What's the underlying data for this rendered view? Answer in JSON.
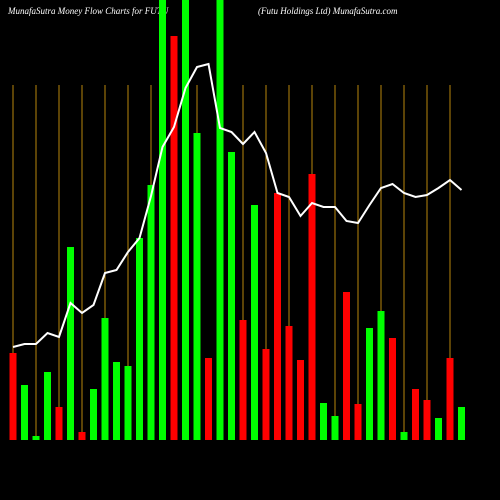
{
  "chart_data": {
    "type": "bar",
    "title": "MunafaSutra  Money Flow  Charts for FUTU",
    "subtitle": "(Futu   Holdings Ltd) MunafaSutra.com",
    "values": [
      87,
      55,
      4,
      68,
      33,
      193,
      8,
      51,
      122,
      78,
      74,
      202,
      255,
      460,
      404,
      460,
      307,
      82,
      460,
      288,
      120,
      235,
      91,
      247,
      114,
      80,
      266,
      37,
      24,
      148,
      36,
      112,
      129,
      102,
      8,
      51,
      40,
      22,
      82,
      33
    ],
    "colors": [
      "red",
      "lime",
      "lime",
      "lime",
      "red",
      "lime",
      "red",
      "lime",
      "lime",
      "lime",
      "lime",
      "lime",
      "lime",
      "lime",
      "red",
      "lime",
      "lime",
      "red",
      "lime",
      "lime",
      "red",
      "lime",
      "red",
      "red",
      "red",
      "red",
      "red",
      "lime",
      "lime",
      "red",
      "red",
      "lime",
      "lime",
      "red",
      "lime",
      "red",
      "red",
      "lime",
      "red",
      "lime"
    ],
    "line": {
      "color": "#ffffff",
      "values": [
        93,
        96,
        96,
        107,
        103,
        137,
        127,
        135,
        167,
        170,
        188,
        202,
        244,
        293,
        313,
        352,
        373,
        376,
        312,
        308,
        296,
        308,
        287,
        247,
        243,
        224,
        237,
        233,
        233,
        219,
        217,
        235,
        252,
        256,
        247,
        243,
        245,
        252,
        260,
        250
      ]
    },
    "grid_color": "#b8860b"
  }
}
